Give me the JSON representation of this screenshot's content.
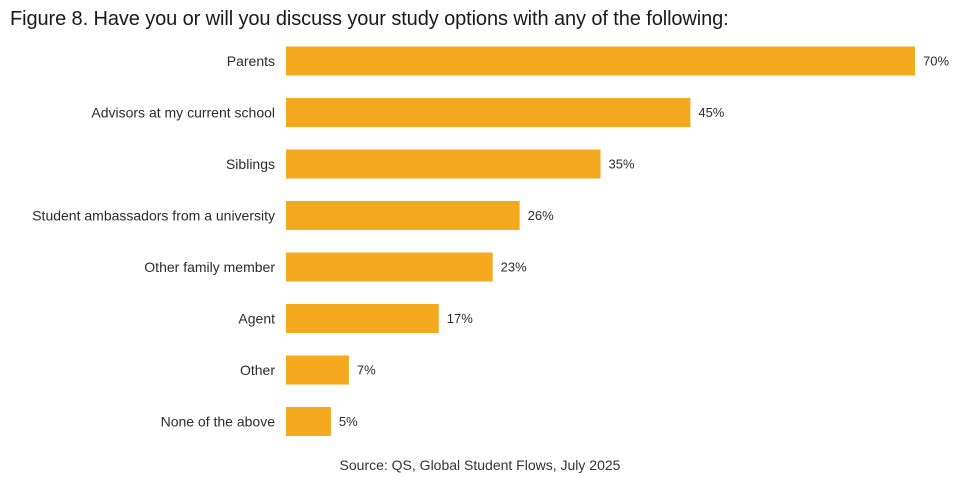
{
  "chart_data": {
    "type": "bar",
    "orientation": "horizontal",
    "title": "Figure 8. Have you or will you discuss your study options with any of the following:",
    "categories": [
      "Parents",
      "Advisors at my current school",
      "Siblings",
      "Student ambassadors from a university",
      "Other family member",
      "Agent",
      "Other",
      "None of the above"
    ],
    "values": [
      70,
      45,
      35,
      26,
      23,
      17,
      7,
      5
    ],
    "value_labels": [
      "70%",
      "45%",
      "35%",
      "26%",
      "23%",
      "17%",
      "7%",
      "5%"
    ],
    "unit": "%",
    "xlim": [
      0,
      70
    ],
    "grid": false,
    "legend": "none",
    "bar_color": "#F4A91E",
    "source": "Source: QS, Global Student Flows, July 2025"
  }
}
